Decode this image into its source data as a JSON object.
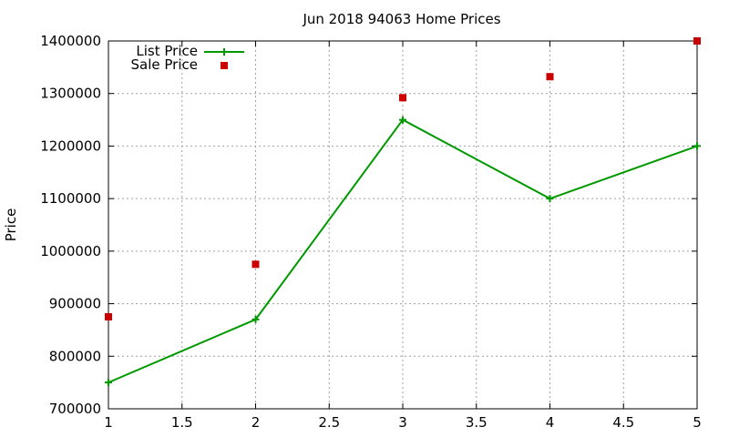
{
  "chart_data": {
    "type": "line",
    "title": "Jun 2018 94063 Home Prices",
    "xlabel": "",
    "ylabel": "Price",
    "xlim": [
      1,
      5
    ],
    "ylim": [
      700000,
      1400000
    ],
    "xticks": [
      1,
      1.5,
      2,
      2.5,
      3,
      3.5,
      4,
      4.5,
      5
    ],
    "xtick_labels": [
      "1",
      "1.5",
      "2",
      "2.5",
      "3",
      "3.5",
      "4",
      "4.5",
      "5"
    ],
    "yticks": [
      700000,
      800000,
      900000,
      1000000,
      1100000,
      1200000,
      1300000,
      1400000
    ],
    "ytick_labels": [
      "700000",
      "800000",
      "900000",
      "1000000",
      "1100000",
      "1200000",
      "1300000",
      "1400000"
    ],
    "grid": true,
    "legend_position": "top-left",
    "series": [
      {
        "name": "List Price",
        "style": "line-with-plus-markers",
        "color": "#009900",
        "x": [
          1,
          2,
          3,
          4,
          5
        ],
        "y": [
          750000,
          870000,
          1250000,
          1100000,
          1200000
        ]
      },
      {
        "name": "Sale Price",
        "style": "square-markers",
        "color": "#cc0000",
        "x": [
          1,
          2,
          3,
          4,
          5
        ],
        "y": [
          875000,
          975000,
          1292000,
          1332000,
          1400000
        ]
      }
    ]
  }
}
